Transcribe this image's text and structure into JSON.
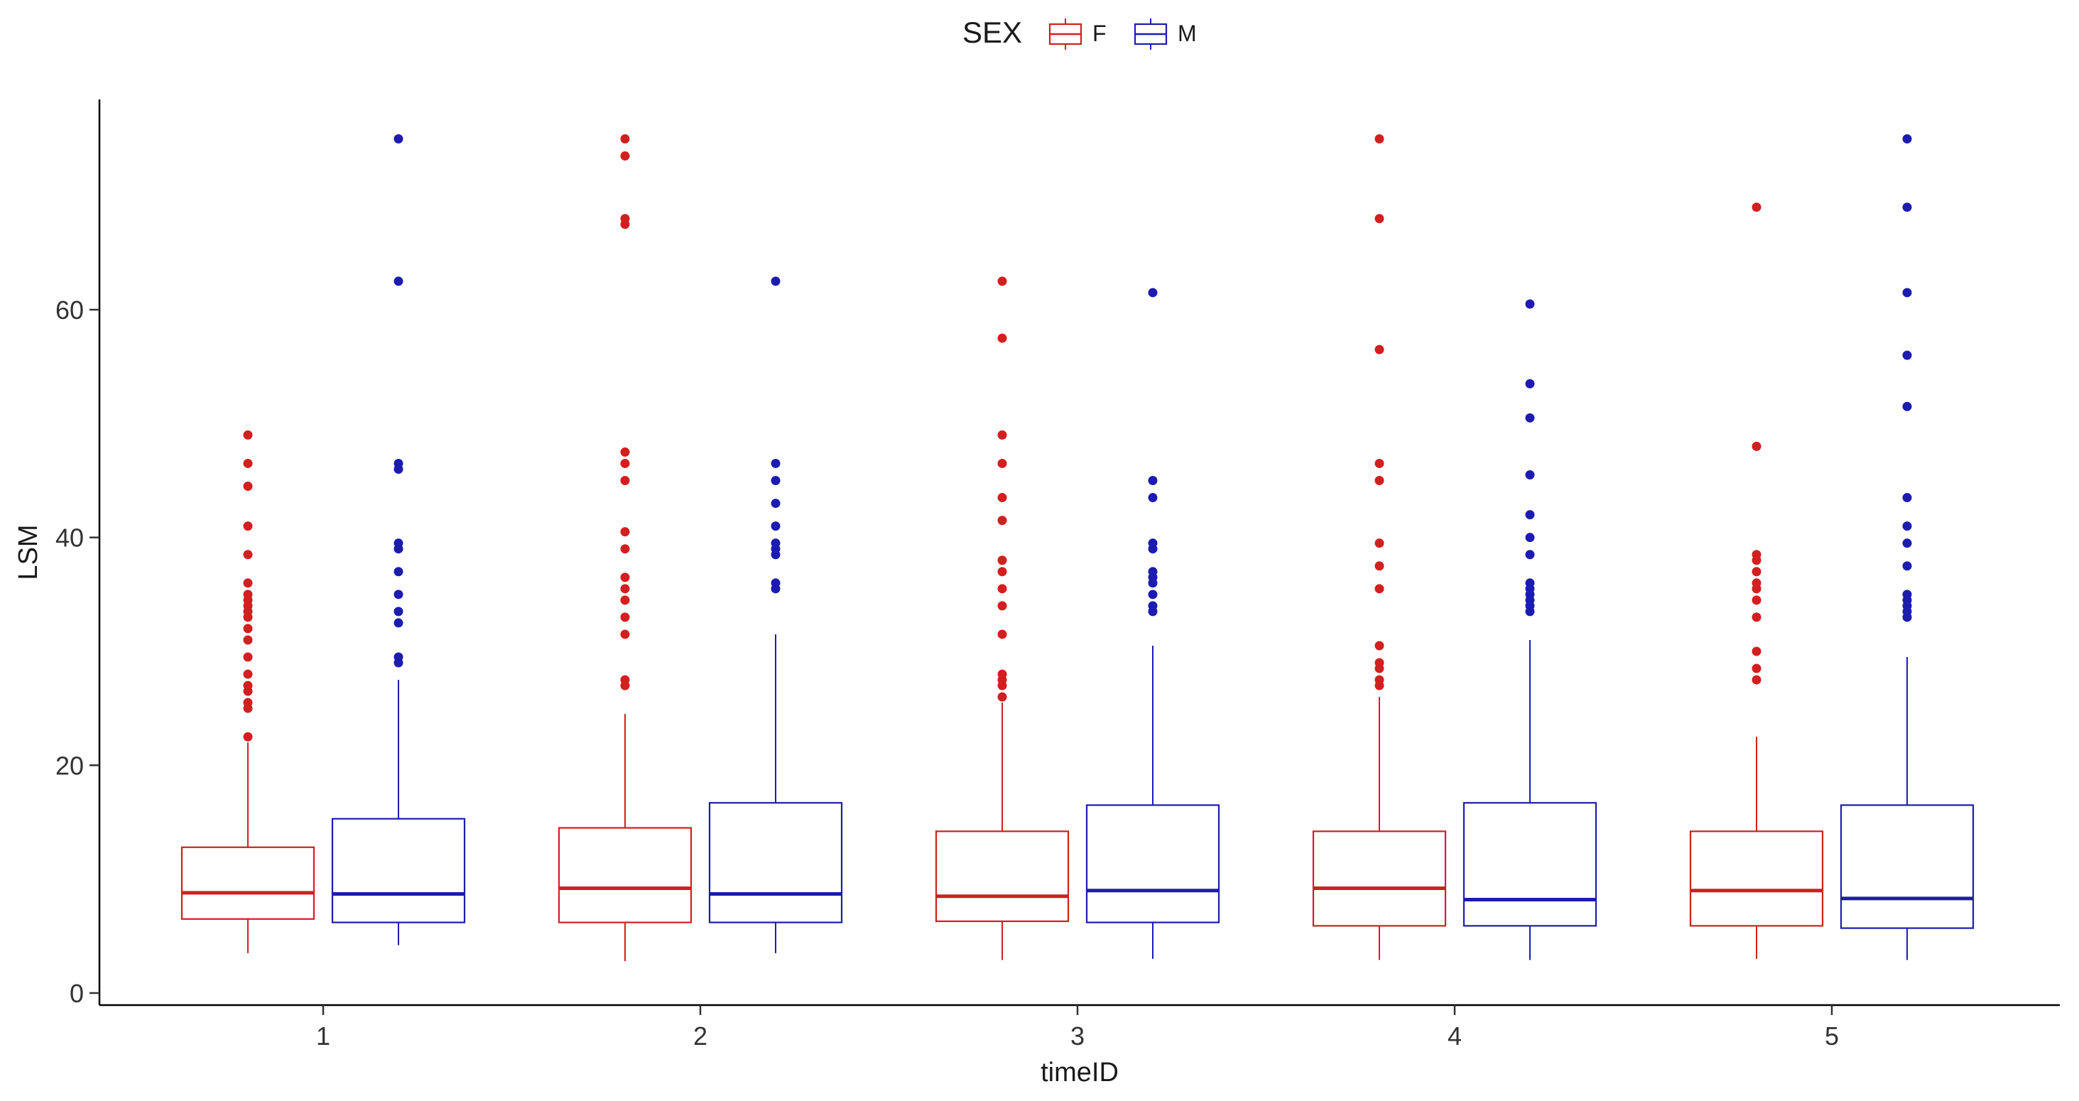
{
  "chart_data": {
    "type": "boxplot",
    "title": "",
    "xlabel": "timeID",
    "ylabel": "LSM",
    "categories": [
      "1",
      "2",
      "3",
      "4",
      "5"
    ],
    "ylim": [
      -1,
      79
    ],
    "yticks": [
      0,
      20,
      40,
      60
    ],
    "legend": {
      "title": "SEX",
      "position": "top-center",
      "entries": [
        "F",
        "M"
      ]
    },
    "colors": {
      "F": "#d21f1f",
      "M": "#1c1cb0"
    },
    "series": [
      {
        "name": "F",
        "boxes": [
          {
            "category": "1",
            "whisker_low": 3.5,
            "q1": 6.5,
            "median": 8.8,
            "q3": 12.8,
            "whisker_high": 22.0,
            "outliers": [
              22.5,
              25.0,
              25.5,
              26.5,
              27.0,
              28.0,
              29.5,
              31.0,
              32.0,
              33.0,
              33.5,
              34.0,
              34.5,
              35.0,
              36.0,
              38.5,
              41.0,
              44.5,
              46.5,
              49.0
            ]
          },
          {
            "category": "2",
            "whisker_low": 2.8,
            "q1": 6.2,
            "median": 9.2,
            "q3": 14.5,
            "whisker_high": 24.5,
            "outliers": [
              27.0,
              27.5,
              31.5,
              33.0,
              34.5,
              35.5,
              36.5,
              39.0,
              40.5,
              45.0,
              46.5,
              47.5,
              67.5,
              68.0,
              73.5,
              75.0
            ]
          },
          {
            "category": "3",
            "whisker_low": 2.9,
            "q1": 6.3,
            "median": 8.5,
            "q3": 14.2,
            "whisker_high": 25.5,
            "outliers": [
              26.0,
              27.0,
              27.5,
              28.0,
              31.5,
              34.0,
              35.5,
              37.0,
              38.0,
              41.5,
              43.5,
              46.5,
              49.0,
              57.5,
              62.5
            ]
          },
          {
            "category": "4",
            "whisker_low": 2.9,
            "q1": 5.9,
            "median": 9.2,
            "q3": 14.2,
            "whisker_high": 26.0,
            "outliers": [
              27.0,
              27.5,
              28.5,
              29.0,
              30.5,
              35.5,
              37.5,
              39.5,
              45.0,
              46.5,
              56.5,
              68.0,
              75.0
            ]
          },
          {
            "category": "5",
            "whisker_low": 3.0,
            "q1": 5.9,
            "median": 9.0,
            "q3": 14.2,
            "whisker_high": 22.5,
            "outliers": [
              27.5,
              28.5,
              30.0,
              33.0,
              34.5,
              35.5,
              36.0,
              37.0,
              38.0,
              38.5,
              48.0,
              69.0
            ]
          }
        ]
      },
      {
        "name": "M",
        "boxes": [
          {
            "category": "1",
            "whisker_low": 4.2,
            "q1": 6.2,
            "median": 8.7,
            "q3": 15.3,
            "whisker_high": 27.5,
            "outliers": [
              29.0,
              29.5,
              32.5,
              33.5,
              35.0,
              37.0,
              39.0,
              39.5,
              46.0,
              46.5,
              62.5,
              75.0
            ]
          },
          {
            "category": "2",
            "whisker_low": 3.5,
            "q1": 6.2,
            "median": 8.7,
            "q3": 16.7,
            "whisker_high": 31.5,
            "outliers": [
              35.5,
              36.0,
              38.5,
              39.0,
              39.5,
              41.0,
              43.0,
              45.0,
              46.5,
              62.5
            ]
          },
          {
            "category": "3",
            "whisker_low": 3.0,
            "q1": 6.2,
            "median": 9.0,
            "q3": 16.5,
            "whisker_high": 30.5,
            "outliers": [
              33.5,
              34.0,
              35.0,
              36.0,
              36.5,
              37.0,
              39.0,
              39.5,
              43.5,
              45.0,
              61.5
            ]
          },
          {
            "category": "4",
            "whisker_low": 2.9,
            "q1": 5.9,
            "median": 8.2,
            "q3": 16.7,
            "whisker_high": 31.0,
            "outliers": [
              33.5,
              34.0,
              34.5,
              35.0,
              35.5,
              36.0,
              38.5,
              40.0,
              42.0,
              45.5,
              50.5,
              53.5,
              60.5
            ]
          },
          {
            "category": "5",
            "whisker_low": 2.9,
            "q1": 5.7,
            "median": 8.3,
            "q3": 16.5,
            "whisker_high": 29.5,
            "outliers": [
              33.0,
              33.5,
              34.0,
              34.5,
              35.0,
              37.5,
              39.5,
              41.0,
              43.5,
              51.5,
              56.0,
              61.5,
              69.0,
              75.0
            ]
          }
        ]
      }
    ]
  }
}
